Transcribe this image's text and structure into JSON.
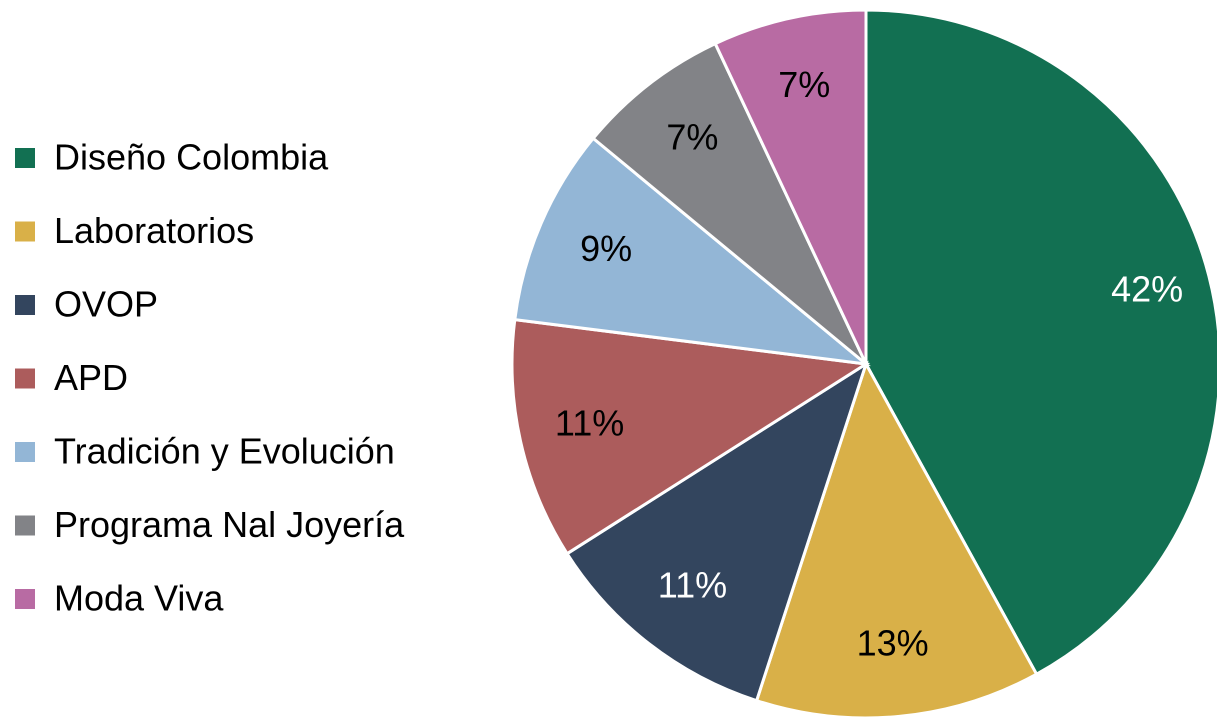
{
  "chart_data": {
    "type": "pie",
    "categories": [
      "Diseño Colombia",
      "Laboratorios",
      "OVOP",
      "APD",
      "Tradición y Evolución",
      "Programa Nal Joyería",
      "Moda Viva"
    ],
    "values": [
      42,
      13,
      11,
      11,
      9,
      7,
      7
    ],
    "value_labels": [
      "42%",
      "13%",
      "11%",
      "11%",
      "9%",
      "7%",
      "7%"
    ],
    "colors": [
      "#127052",
      "#d9b048",
      "#33455e",
      "#ac5c5c",
      "#93b6d6",
      "#828387",
      "#b86ba3"
    ],
    "legend": "left"
  }
}
